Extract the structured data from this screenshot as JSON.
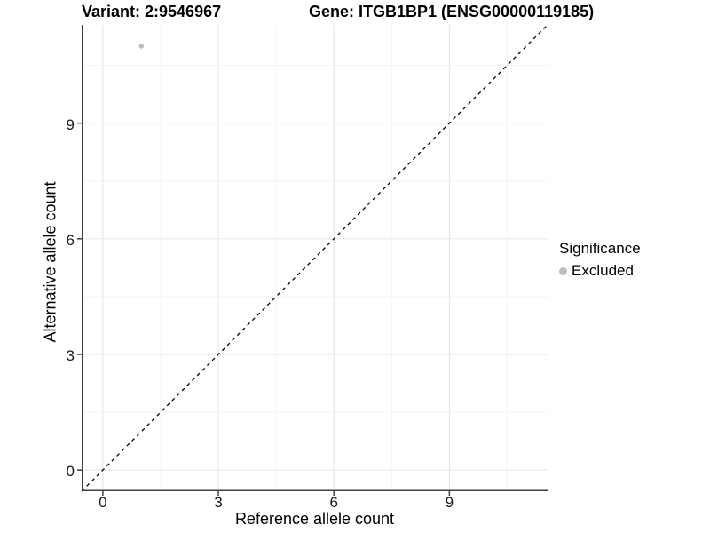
{
  "chart_data": {
    "type": "scatter",
    "title_left": "Variant: 2:9546967",
    "title_right": "Gene: ITGB1BP1 (ENSG00000119185)",
    "xlabel": "Reference allele count",
    "ylabel": "Alternative allele count",
    "xlim": [
      -0.55,
      11.55
    ],
    "ylim": [
      -0.55,
      11.55
    ],
    "x_ticks": [
      0,
      3,
      6,
      9
    ],
    "y_ticks": [
      0,
      3,
      6,
      9
    ],
    "x_minor_ticks": [
      1.5,
      4.5,
      7.5,
      10.5
    ],
    "y_minor_ticks": [
      1.5,
      4.5,
      7.5,
      10.5
    ],
    "grid": "major+minor",
    "series": [
      {
        "name": "Excluded",
        "color": "#bdbdbd",
        "points": [
          {
            "x": 1,
            "y": 11
          }
        ]
      }
    ],
    "reference_line": {
      "type": "identity y=x",
      "style": "dashed",
      "color": "#000000",
      "x": [
        -0.55,
        11.55
      ],
      "y": [
        -0.55,
        11.55
      ]
    },
    "legend": {
      "title": "Significance",
      "position": "right",
      "items": [
        {
          "label": "Excluded",
          "color": "#bdbdbd"
        }
      ]
    }
  },
  "colors": {
    "background": "#ffffff",
    "grid_major": "#e8e8e8",
    "grid_minor": "#f4f4f4",
    "axis_line": "#404040",
    "tick_mark": "#404040",
    "text": "#000000",
    "point": "#bdbdbd"
  }
}
